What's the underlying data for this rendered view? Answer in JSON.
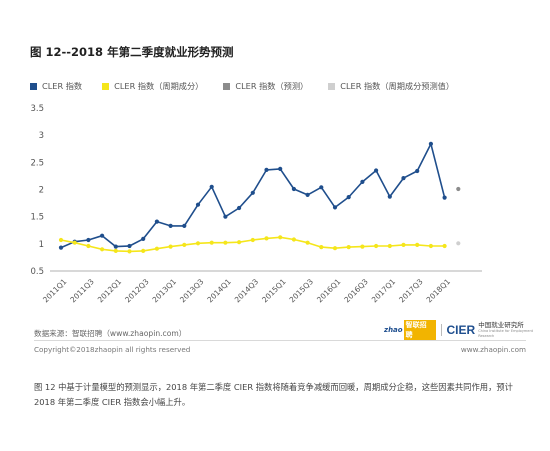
{
  "page": {
    "title": "图 12--2018 年第二季度就业形势预测",
    "source": "数据来源：智联招聘（www.zhaopin.com）",
    "copyright": "Copyright©2018zhaopin all rights reserved",
    "site": "www.zhaopin.com",
    "logo_zhao": "zhao",
    "logo_pin": "智联招聘",
    "logo_cier": "CIER",
    "logo_cn": "中国就业研究所",
    "logo_en": "China Institute for Employment Research",
    "caption": "图 12 中基于计量模型的预测显示，2018 年第二季度 CIER 指数将随着竞争减缓而回暖，周期成分企稳，这些因素共同作用，预计 2018 年第二季度 CIER 指数会小幅上升。"
  },
  "chart_data": {
    "type": "line",
    "title": "图 12--2018 年第二季度就业形势预测",
    "categories": [
      "2011Q1",
      "2011Q2",
      "2011Q3",
      "2011Q4",
      "2012Q1",
      "2012Q2",
      "2012Q3",
      "2012Q4",
      "2013Q1",
      "2013Q2",
      "2013Q3",
      "2013Q4",
      "2014Q1",
      "2014Q2",
      "2014Q3",
      "2014Q4",
      "2015Q1",
      "2015Q2",
      "2015Q3",
      "2015Q4",
      "2016Q1",
      "2016Q2",
      "2016Q3",
      "2016Q4",
      "2017Q1",
      "2017Q2",
      "2017Q3",
      "2017Q4",
      "2018Q1",
      "2018Q2"
    ],
    "tick_labels": [
      "2011Q1",
      "2011Q3",
      "2012Q1",
      "2012Q3",
      "2013Q1",
      "2013Q3",
      "2014Q1",
      "2014Q3",
      "2015Q1",
      "2015Q3",
      "2016Q1",
      "2016Q3",
      "2017Q1",
      "2017Q3",
      "2018Q1"
    ],
    "ylim": [
      0.5,
      3.5
    ],
    "yticks": [
      "3.5",
      "3",
      "2.5",
      "2",
      "1.5",
      "1",
      "0.5"
    ],
    "ytick_values": [
      3.5,
      3,
      2.5,
      2,
      1.5,
      1,
      0.5
    ],
    "grid": false,
    "legend_position": "top",
    "series": [
      {
        "name": "CLER 指数",
        "color": "#1f4e8c",
        "values": [
          0.93,
          1.04,
          1.07,
          1.15,
          0.95,
          0.96,
          1.09,
          1.41,
          1.33,
          1.33,
          1.72,
          2.05,
          1.5,
          1.66,
          1.94,
          2.36,
          2.38,
          2.01,
          1.9,
          2.04,
          1.67,
          1.86,
          2.14,
          2.35,
          1.87,
          2.21,
          2.34,
          2.84,
          1.85,
          null
        ]
      },
      {
        "name": "CLER 指数（周期成分）",
        "color": "#f5e61b",
        "values": [
          1.07,
          1.02,
          0.96,
          0.9,
          0.87,
          0.86,
          0.87,
          0.91,
          0.95,
          0.98,
          1.01,
          1.02,
          1.02,
          1.03,
          1.07,
          1.1,
          1.12,
          1.08,
          1.02,
          0.94,
          0.92,
          0.94,
          0.95,
          0.96,
          0.96,
          0.98,
          0.98,
          0.96,
          0.96,
          null
        ]
      },
      {
        "name": "CLER 指数（预测）",
        "color": "#8c8c8c",
        "values": [
          null,
          null,
          null,
          null,
          null,
          null,
          null,
          null,
          null,
          null,
          null,
          null,
          null,
          null,
          null,
          null,
          null,
          null,
          null,
          null,
          null,
          null,
          null,
          null,
          null,
          null,
          null,
          null,
          null,
          2.01
        ]
      },
      {
        "name": "CLER 指数（周期成分预测值）",
        "color": "#cfcfcf",
        "values": [
          null,
          null,
          null,
          null,
          null,
          null,
          null,
          null,
          null,
          null,
          null,
          null,
          null,
          null,
          null,
          null,
          null,
          null,
          null,
          null,
          null,
          null,
          null,
          null,
          null,
          null,
          null,
          null,
          null,
          1.01
        ]
      }
    ]
  }
}
